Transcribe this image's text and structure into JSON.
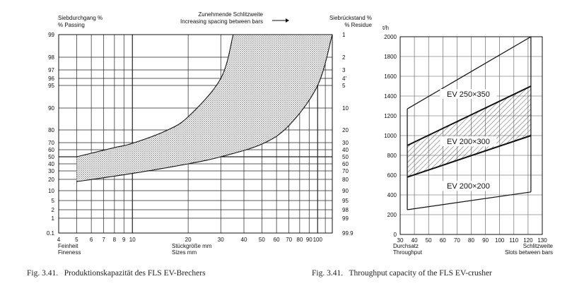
{
  "chart_data": [
    {
      "type": "area",
      "x_scale": "log",
      "y_scale": "probability",
      "left_ylabel": [
        "Siebdurchgang %",
        "% Passing"
      ],
      "right_ylabel": [
        "Siebrückstand %",
        "% Residue"
      ],
      "top_annotation": [
        "Zunehmende Schlitzweite",
        "Increasing spacing between bars"
      ],
      "left_tick_labels": [
        "99",
        "98",
        "97",
        "96",
        "95",
        "90",
        "80",
        "70",
        "60",
        "50",
        "40",
        "30",
        "20",
        "10",
        "5",
        "2",
        "1",
        "0.1"
      ],
      "right_tick_labels": [
        "1",
        "2",
        "3",
        "4'",
        "5",
        "10",
        "20",
        "30",
        "40",
        "50",
        "60",
        "70",
        "80",
        "90",
        "95",
        "98",
        "99",
        "99.9"
      ],
      "x_tick_labels": [
        "4",
        "5",
        "6",
        "7",
        "8",
        "9",
        "10",
        "20",
        "30",
        "40",
        "50",
        "60",
        "70",
        "80",
        "90",
        "100"
      ],
      "xlabel_left": [
        "Feinheit",
        "Fineness"
      ],
      "xlabel_center": [
        "Stückgröße mm",
        "Sizes mm"
      ],
      "xlim": [
        4,
        120
      ],
      "upper_boundary": {
        "x": [
          5,
          6,
          8,
          10,
          15,
          20,
          30,
          35
        ],
        "y": [
          50,
          55,
          63,
          69,
          79,
          86,
          96,
          99
        ]
      },
      "lower_boundary": {
        "x": [
          5,
          10,
          20,
          30,
          50,
          70,
          100,
          120
        ],
        "y": [
          18,
          27,
          40,
          50,
          68,
          82,
          95,
          99
        ]
      }
    },
    {
      "type": "line",
      "yunit": "t/h",
      "ylim": [
        0,
        2000
      ],
      "xlim": [
        30,
        130
      ],
      "y_tick_labels": [
        "0",
        "200",
        "400",
        "600",
        "800",
        "1000",
        "1200",
        "1400",
        "1600",
        "1800",
        "2000"
      ],
      "x_tick_labels": [
        "30",
        "40",
        "50",
        "60",
        "70",
        "80",
        "90",
        "100",
        "110",
        "120",
        "130"
      ],
      "xlabel_left": [
        "Durchsatz",
        "Throughput"
      ],
      "xlabel_right": [
        "Schlitzweite",
        "Slots between bars"
      ],
      "series": [
        {
          "name": "EV 250×350",
          "x": [
            35,
            122
          ],
          "upper": [
            1270,
            2000
          ],
          "lower": [
            900,
            1500
          ]
        },
        {
          "name": "EV 200×300",
          "x": [
            35,
            122
          ],
          "upper": [
            900,
            1500
          ],
          "lower": [
            580,
            1000
          ]
        },
        {
          "name": "EV 200×200",
          "x": [
            35,
            122
          ],
          "upper": [
            580,
            1000
          ],
          "lower": [
            250,
            430
          ]
        }
      ]
    }
  ],
  "captions": {
    "left": "Fig. 3.41.   Produktionskapazität des FLS EV-Brechers",
    "right": "Fig. 3.41.   Throughput capacity of the FLS EV-crusher"
  }
}
